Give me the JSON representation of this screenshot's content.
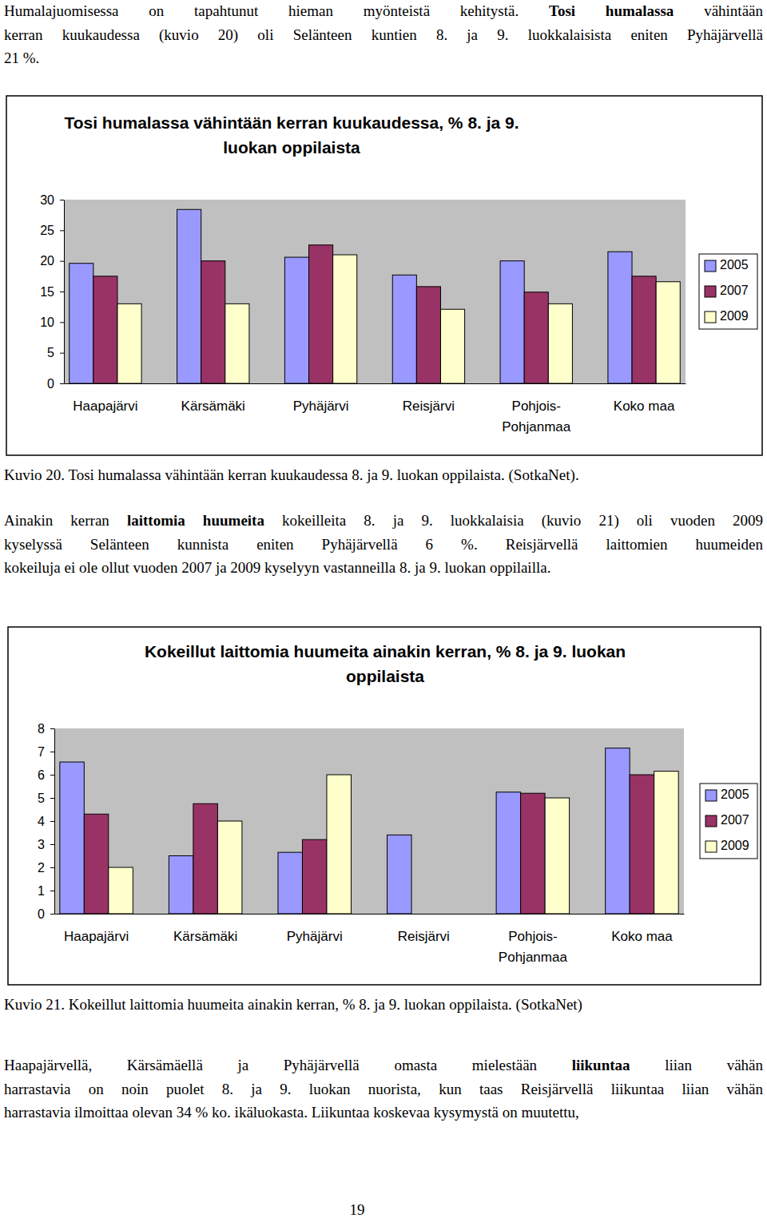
{
  "paragraphs": [
    [
      [
        {
          "text": "Humalajuomisessa on tapahtunut hieman myönteistä kehitystä. "
        },
        {
          "text": "Tosi humalassa",
          "bold": true
        },
        {
          "text": " vähintään"
        }
      ],
      [
        {
          "text": "kerran kuukaudessa (kuvio 20) oli Selänteen kuntien 8. ja 9. luokkalaisista eniten Pyhäjärvellä"
        }
      ],
      [
        {
          "text": "21 %."
        }
      ]
    ],
    [
      [
        {
          "text": "Ainakin kerran "
        },
        {
          "text": "laittomia huumeita",
          "bold": true
        },
        {
          "text": " kokeilleita 8. ja 9. luokkalaisia (kuvio 21) oli vuoden 2009"
        }
      ],
      [
        {
          "text": "kyselyssä Selänteen kunnista eniten Pyhäjärvellä 6 %. Reisjärvellä laittomien huumeiden"
        }
      ],
      [
        {
          "text": "kokeiluja ei ole ollut vuoden 2007 ja 2009 kyselyyn vastanneilla 8. ja 9. luokan oppilailla."
        }
      ]
    ],
    [
      [
        {
          "text": "Haapajärvellä, Kärsämäellä ja Pyhäjärvellä omasta mielestään "
        },
        {
          "text": "liikuntaa",
          "bold": true
        },
        {
          "text": " liian vähän"
        }
      ],
      [
        {
          "text": "harrastavia on noin puolet 8. ja 9. luokan nuorista, kun taas Reisjärvellä liikuntaa liian vähän"
        }
      ],
      [
        {
          "text": "harrastavia ilmoittaa olevan 34 % ko. ikäluokasta. Liikuntaa koskevaa kysymystä on muutettu,"
        }
      ]
    ]
  ],
  "chart_data": [
    {
      "type": "bar",
      "title": "Tosi humalassa vähintään kerran kuukaudessa, % 8. ja 9.\nluokan oppilaista",
      "categories": [
        "Haapajärvi",
        "Kärsämäki",
        "Pyhäjärvi",
        "Reisjärvi",
        "Pohjois-\nPohjanmaa",
        "Koko maa"
      ],
      "series": [
        {
          "name": "2005",
          "color": "#9999ff",
          "values": [
            19.6,
            28.4,
            20.6,
            17.7,
            20.0,
            21.5
          ]
        },
        {
          "name": "2007",
          "color": "#993366",
          "values": [
            17.5,
            20.0,
            22.6,
            15.8,
            14.9,
            17.5
          ]
        },
        {
          "name": "2009",
          "color": "#ffffcc",
          "values": [
            13.0,
            13.0,
            21.0,
            12.1,
            13.0,
            16.6
          ]
        }
      ],
      "ylim": [
        0,
        30
      ],
      "yticks": [
        0,
        5,
        10,
        15,
        20,
        25,
        30
      ],
      "grid": false,
      "legend": "right"
    },
    {
      "type": "bar",
      "title": "Kokeillut laittomia huumeita ainakin kerran, % 8. ja 9. luokan\noppilaista",
      "categories": [
        "Haapajärvi",
        "Kärsämäki",
        "Pyhäjärvi",
        "Reisjärvi",
        "Pohjois-\nPohjanmaa",
        "Koko maa"
      ],
      "series": [
        {
          "name": "2005",
          "color": "#9999ff",
          "values": [
            6.55,
            2.5,
            2.65,
            3.4,
            5.25,
            7.15
          ]
        },
        {
          "name": "2007",
          "color": "#993366",
          "values": [
            4.3,
            4.75,
            3.2,
            0,
            5.2,
            6.0
          ]
        },
        {
          "name": "2009",
          "color": "#ffffcc",
          "values": [
            2.0,
            4.0,
            6.0,
            0,
            5.0,
            6.15
          ]
        }
      ],
      "ylim": [
        0,
        8
      ],
      "yticks": [
        0,
        1,
        2,
        3,
        4,
        5,
        6,
        7,
        8
      ],
      "grid": false,
      "legend": "right"
    }
  ],
  "captions": [
    "Kuvio 20. Tosi humalassa vähintään kerran kuukaudessa 8. ja 9. luokan oppilaista. (SotkaNet).",
    "Kuvio 21. Kokeillut laittomia huumeita ainakin kerran, % 8. ja 9. luokan oppilaista. (SotkaNet)"
  ],
  "page_number": "19"
}
